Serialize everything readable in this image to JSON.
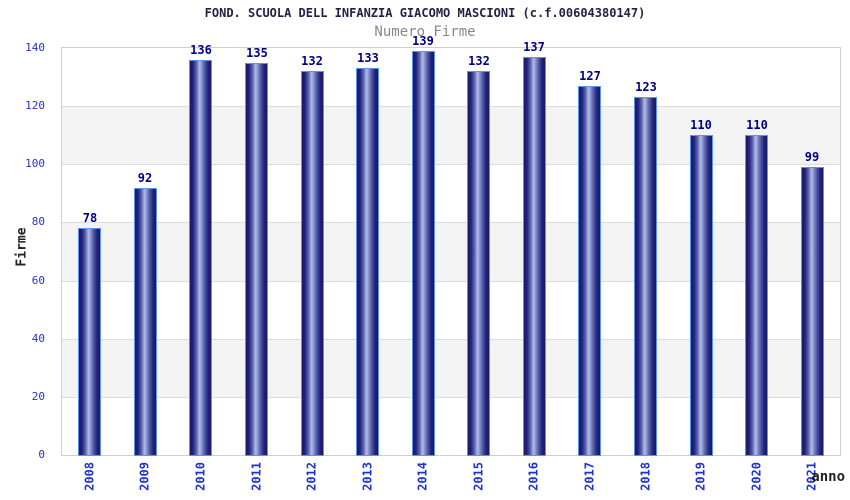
{
  "chart_data": {
    "type": "bar",
    "title": "FOND. SCUOLA DELL INFANZIA GIACOMO MASCIONI (c.f.00604380147)",
    "subtitle": "Numero Firme",
    "xlabel": "anno",
    "ylabel": "Firme",
    "categories": [
      "2008",
      "2009",
      "2010",
      "2011",
      "2012",
      "2013",
      "2014",
      "2015",
      "2016",
      "2017",
      "2018",
      "2019",
      "2020",
      "2021"
    ],
    "values": [
      78,
      92,
      136,
      135,
      132,
      133,
      139,
      132,
      137,
      127,
      123,
      110,
      110,
      99
    ],
    "ylim": [
      0,
      140
    ],
    "yticks": [
      0,
      20,
      40,
      60,
      80,
      100,
      120,
      140
    ],
    "grid": "alternating horizontal bands every 20 units, thin gridlines",
    "legend": "none",
    "value_labels": "above each bar",
    "colors": {
      "bar_dark": "#191966",
      "bar_highlight": "#b4bce6",
      "bar_border": "#5b93ee",
      "tick_label_blue": "#2233cc",
      "value_label_navy": "#000080",
      "title_color": "#222244",
      "subtitle_gray": "#888888",
      "axis_label_color": "#222222",
      "band_gray": "#f3f3f3",
      "grid_line": "#dcdcdc",
      "plot_border": "#d0d0d0",
      "background": "#ffffff"
    }
  }
}
